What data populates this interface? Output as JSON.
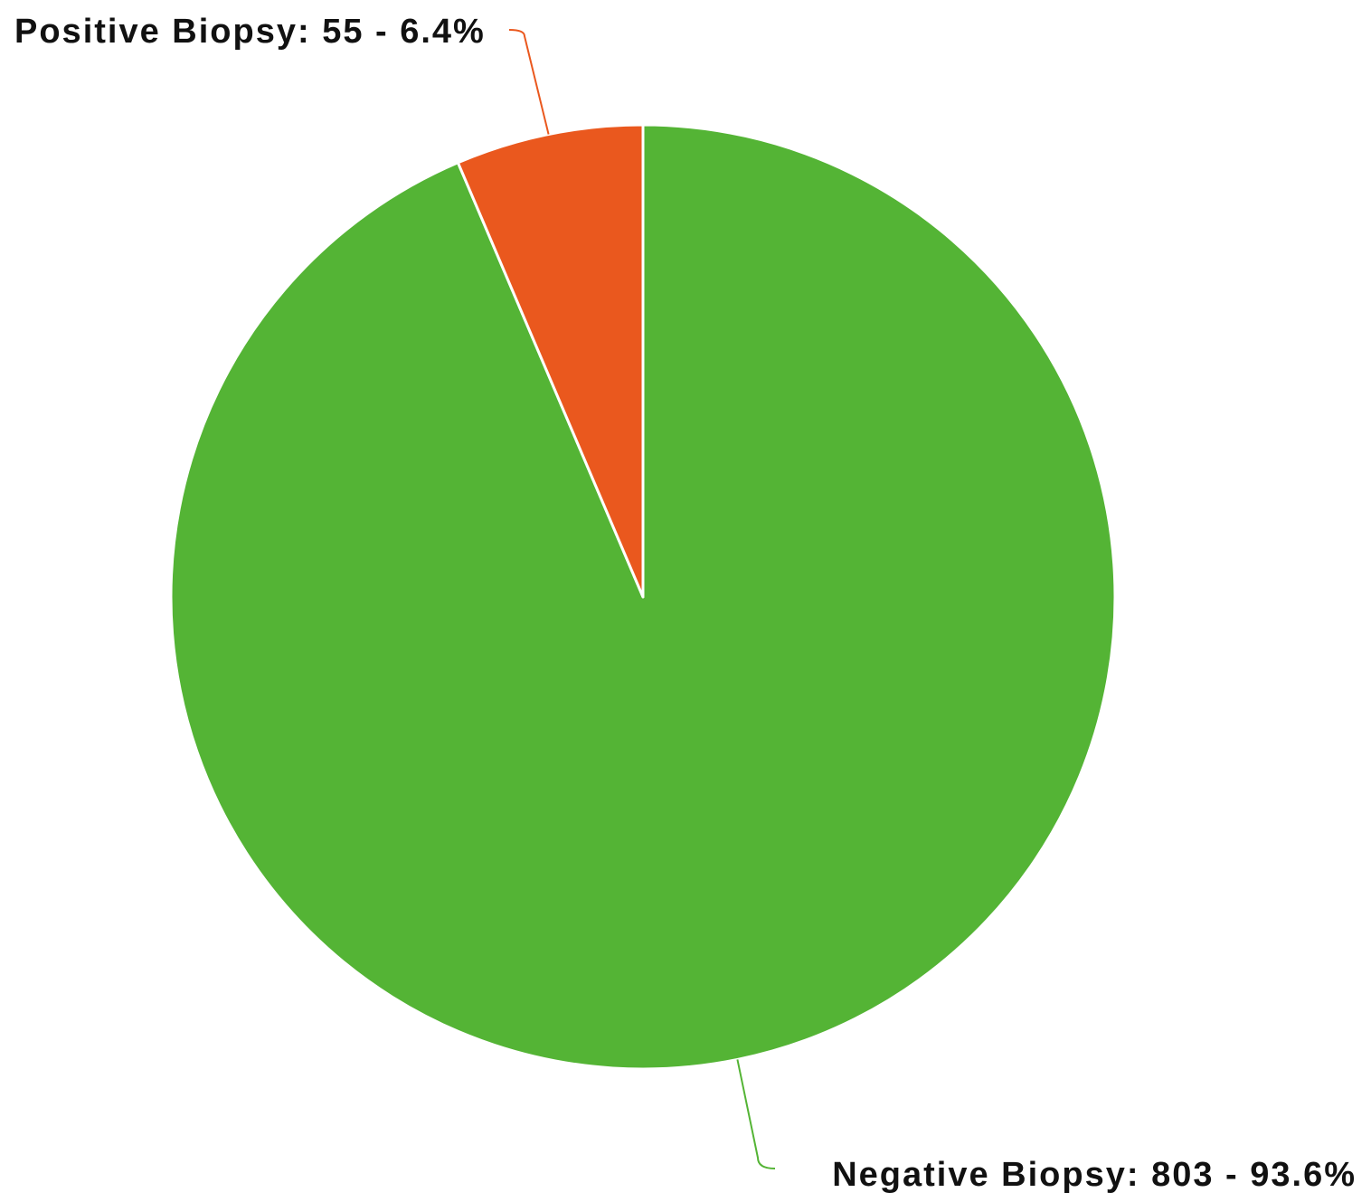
{
  "chart_data": {
    "type": "pie",
    "title": "",
    "start_angle_deg": 0,
    "direction": "counterclockwise",
    "slices": [
      {
        "label": "Negative Biopsy",
        "value": 803,
        "percent": 93.6,
        "label_text": "Negative Biopsy: 803 - 93.6%",
        "color": "#54b435",
        "label_side": "bottom-right"
      },
      {
        "label": "Positive Biopsy",
        "value": 55,
        "percent": 6.4,
        "label_text": "Positive Biopsy: 55 - 6.4%",
        "color": "#ea581e",
        "label_side": "top-left"
      }
    ],
    "legend": "none",
    "grid": false
  }
}
